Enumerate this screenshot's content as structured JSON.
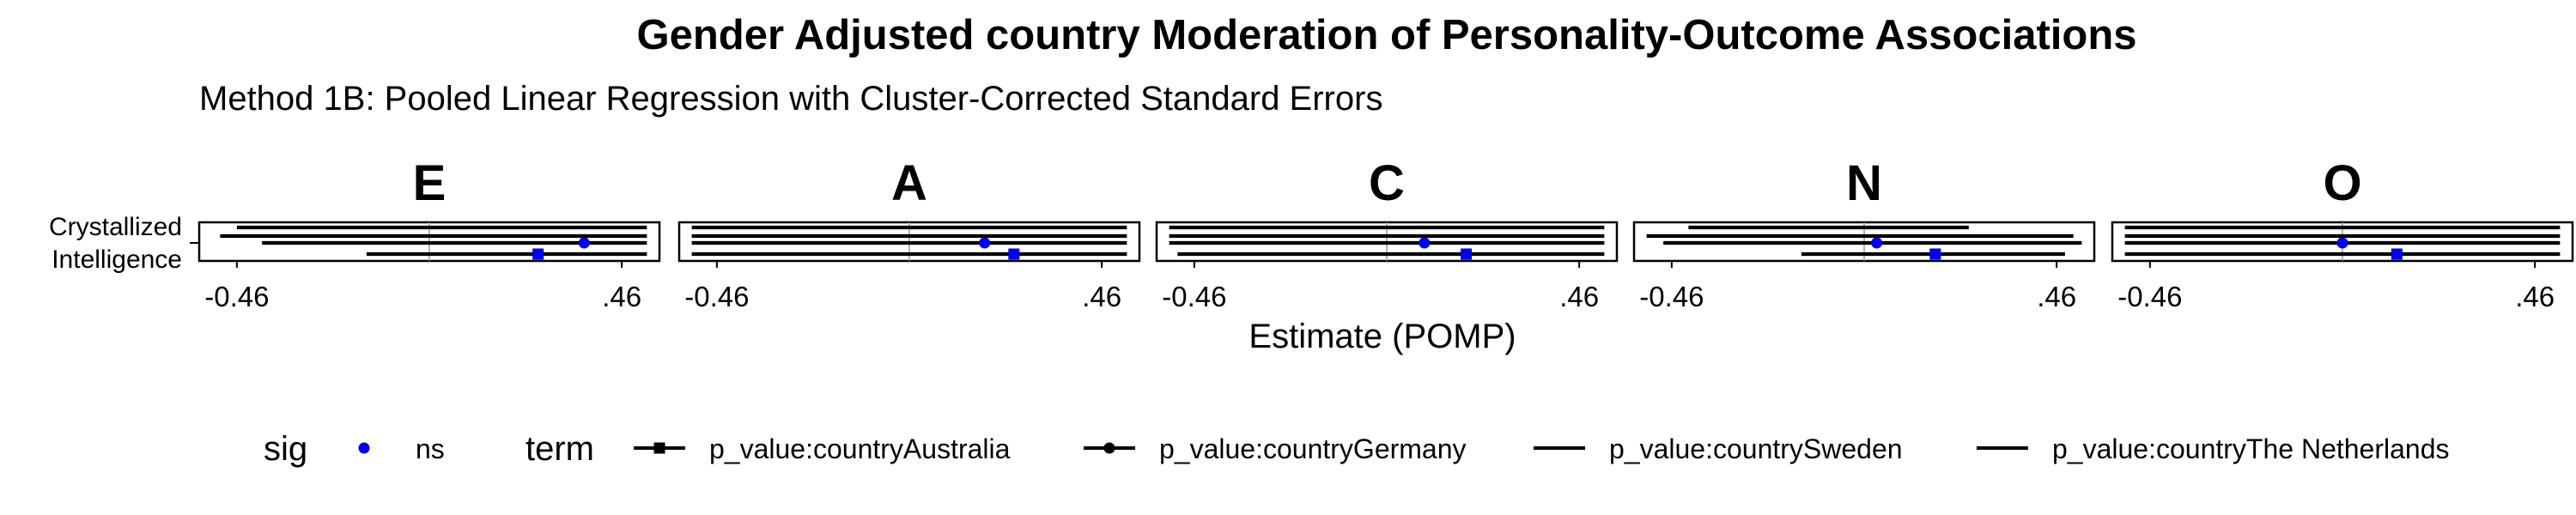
{
  "chart_data": {
    "type": "forest",
    "title": "Gender Adjusted country Moderation of Personality-Outcome Associations",
    "subtitle": "Method 1B: Pooled Linear Regression with Cluster-Corrected Standard Errors",
    "xlabel": "Estimate (POMP)",
    "xlim": [
      -0.55,
      0.55
    ],
    "x_ticks": [
      {
        "value": -0.46,
        "label": "-0.46"
      },
      {
        "value": 0.46,
        "label": ".46"
      }
    ],
    "reference_line": 0,
    "y_categories": [
      "Crystallized\nIntelligence"
    ],
    "panels": [
      {
        "label": "E",
        "estimates": [
          {
            "term": "p_value:countryAustralia",
            "estimate": 0.26,
            "low": -0.15,
            "high": 0.52,
            "sig": "ns",
            "shape": "square"
          },
          {
            "term": "p_value:countryGermany",
            "estimate": 0.37,
            "low": -0.4,
            "high": 0.52,
            "sig": "ns",
            "shape": "circle"
          },
          {
            "term": "p_value:countrySweden",
            "low": -0.5,
            "high": 0.52
          },
          {
            "term": "p_value:countryThe Netherlands",
            "low": -0.46,
            "high": 0.52
          }
        ]
      },
      {
        "label": "A",
        "estimates": [
          {
            "term": "p_value:countryAustralia",
            "estimate": 0.25,
            "low": -0.52,
            "high": 0.52,
            "sig": "ns",
            "shape": "square"
          },
          {
            "term": "p_value:countryGermany",
            "estimate": 0.18,
            "low": -0.52,
            "high": 0.52,
            "sig": "ns",
            "shape": "circle"
          },
          {
            "term": "p_value:countrySweden",
            "low": -0.52,
            "high": 0.52
          },
          {
            "term": "p_value:countryThe Netherlands",
            "low": -0.52,
            "high": 0.52
          }
        ]
      },
      {
        "label": "C",
        "estimates": [
          {
            "term": "p_value:countryAustralia",
            "estimate": 0.19,
            "low": -0.5,
            "high": 0.52,
            "sig": "ns",
            "shape": "square"
          },
          {
            "term": "p_value:countryGermany",
            "estimate": 0.09,
            "low": -0.52,
            "high": 0.52,
            "sig": "ns",
            "shape": "circle"
          },
          {
            "term": "p_value:countrySweden",
            "low": -0.52,
            "high": 0.52
          },
          {
            "term": "p_value:countryThe Netherlands",
            "low": -0.52,
            "high": 0.52
          }
        ]
      },
      {
        "label": "N",
        "estimates": [
          {
            "term": "p_value:countryAustralia",
            "estimate": 0.17,
            "low": -0.15,
            "high": 0.48,
            "sig": "ns",
            "shape": "square"
          },
          {
            "term": "p_value:countryGermany",
            "estimate": 0.03,
            "low": -0.48,
            "high": 0.52,
            "sig": "ns",
            "shape": "circle"
          },
          {
            "term": "p_value:countrySweden",
            "low": -0.52,
            "high": 0.5
          },
          {
            "term": "p_value:countryThe Netherlands",
            "low": -0.42,
            "high": 0.25
          }
        ]
      },
      {
        "label": "O",
        "estimates": [
          {
            "term": "p_value:countryAustralia",
            "estimate": 0.13,
            "low": -0.52,
            "high": 0.52,
            "sig": "ns",
            "shape": "square"
          },
          {
            "term": "p_value:countryGermany",
            "estimate": 0.0,
            "low": -0.52,
            "high": 0.52,
            "sig": "ns",
            "shape": "circle"
          },
          {
            "term": "p_value:countrySweden",
            "low": -0.52,
            "high": 0.52
          },
          {
            "term": "p_value:countryThe Netherlands",
            "low": -0.52,
            "high": 0.52
          }
        ]
      }
    ],
    "legend": {
      "position": "bottom",
      "sig_title": "sig",
      "sig_items": [
        {
          "label": "ns",
          "color": "#0000ee"
        }
      ],
      "term_title": "term",
      "term_items": [
        {
          "label": "p_value:countryAustralia",
          "shape": "square"
        },
        {
          "label": "p_value:countryGermany",
          "shape": "circle"
        },
        {
          "label": "p_value:countrySweden",
          "shape": "none"
        },
        {
          "label": "p_value:countryThe Netherlands",
          "shape": "none"
        }
      ]
    },
    "colors": {
      "point": "#0000ee",
      "line": "#000000",
      "grid": "#9a9a9a"
    }
  }
}
